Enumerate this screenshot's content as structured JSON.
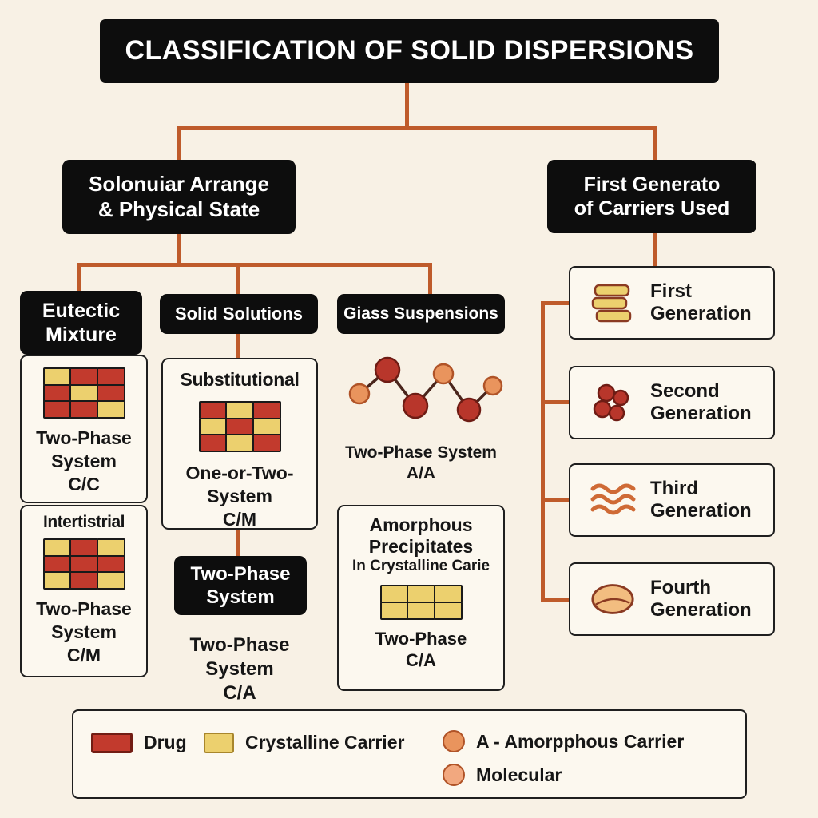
{
  "title": "CLASSIFICATION OF SOLID DISPERSIONS",
  "colors": {
    "background": "#f8f1e5",
    "line": "#bf5b2b",
    "box_black": "#0d0d0d",
    "box_white": "#fcf8ef",
    "border_dark": "#1f1f1f",
    "text_dark": "#161616",
    "drug": "#c23a2d",
    "drug_border": "#721d14",
    "carrier": "#ecd06e",
    "carrier_border": "#a8862c",
    "amorphous": "#e9945d",
    "amorphous_border": "#b05327",
    "molecular": "#f2a87f",
    "network_line": "#4a251c"
  },
  "top_branches": {
    "left": {
      "line1": "Solonuiar Arrange",
      "line2": "& Physical State"
    },
    "right": {
      "line1": "First Generato",
      "line2": "of Carriers Used"
    }
  },
  "eutectic": {
    "header_line1": "Eutectic",
    "header_line2": "Mixture",
    "phase_caption": {
      "line1": "Two-Phase",
      "line2": "System",
      "line3": "C/C"
    },
    "grid": [
      [
        "c",
        "d",
        "d"
      ],
      [
        "d",
        "c",
        "d"
      ],
      [
        "d",
        "d",
        "c"
      ]
    ],
    "interstitial": {
      "title": "Intertistrial",
      "caption": {
        "line1": "Two-Phase",
        "line2": "System",
        "line3": "C/M"
      },
      "grid": [
        [
          "c",
          "d",
          "c"
        ],
        [
          "d",
          "d",
          "d"
        ],
        [
          "c",
          "d",
          "c"
        ]
      ]
    }
  },
  "solid_solutions": {
    "header": "Solid Solutions",
    "substitutional": {
      "title": "Substitutional",
      "caption": {
        "line1": "One-or-Two-",
        "line2": "System",
        "line3": "C/M"
      },
      "grid": [
        [
          "d",
          "c",
          "d"
        ],
        [
          "c",
          "d",
          "c"
        ],
        [
          "d",
          "c",
          "d"
        ]
      ]
    },
    "two_phase_box": {
      "line1": "Two-Phase",
      "line2": "System"
    },
    "bottom_caption": {
      "line1": "Two-Phase",
      "line2": "System",
      "line3": "C/A"
    }
  },
  "glass": {
    "header": "Giass Suspensions",
    "caption": {
      "line1": "Two-Phase System",
      "line2": "A/A"
    },
    "amorphous": {
      "title_line1": "Amorphous",
      "title_line2": "Precipitates",
      "title_line3": "In Crystalline Carie",
      "grid": [
        [
          "c",
          "c",
          "c"
        ],
        [
          "c",
          "c",
          "c"
        ]
      ],
      "caption": {
        "line1": "Two-Phase",
        "line2": "C/A"
      }
    }
  },
  "generations": [
    {
      "line1": "First",
      "line2": "Generation",
      "icon": "stacked-carrier-tablets"
    },
    {
      "line1": "Second",
      "line2": "Generation",
      "icon": "drug-particle-cluster"
    },
    {
      "line1": "Third",
      "line2": "Generation",
      "icon": "polymer-waves"
    },
    {
      "line1": "Fourth",
      "line2": "Generation",
      "icon": "tablet"
    }
  ],
  "legend": {
    "drug_label": "Drug",
    "crystalline_label": "Crystalline Carrier",
    "amorphous_label": "A - Amorpphous Carrier",
    "molecular_label": "Molecular"
  }
}
